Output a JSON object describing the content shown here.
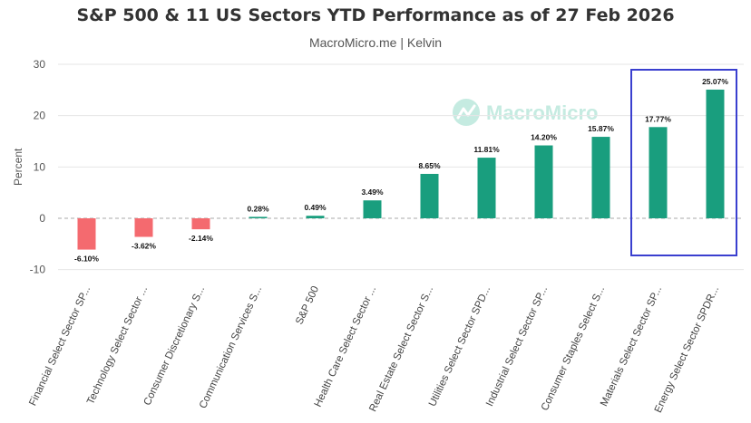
{
  "colors": {
    "positive": "#199e7e",
    "negative": "#f46a6f",
    "highlight_box": "#3a3fcf",
    "grid": "#e6e6e6",
    "zero_line": "#aaaaaa",
    "watermark": "#c5ebe1"
  },
  "watermark": {
    "text": "MacroMicro",
    "icon": "macromicro-logo-icon"
  },
  "chart_data": {
    "type": "bar",
    "title": "S&P 500 & 11 US Sectors YTD Performance as of 27 Feb 2026",
    "subtitle": "MacroMicro.me | Kelvin",
    "xlabel": "",
    "ylabel": "Percent",
    "ylim": [
      -10,
      30
    ],
    "yticks": [
      -10,
      0,
      10,
      20,
      30
    ],
    "grid": true,
    "categories": [
      "Financial Select Sector SP...",
      "Technology Select Sector ...",
      "Consumer Discretionary S...",
      "Communication Services S...",
      "S&P 500",
      "Health Care Select Sector ...",
      "Real Estate Select Sector S...",
      "Utilities Select Sector SPD...",
      "Industrial Select Sector SP...",
      "Consumer Staples Select S...",
      "Materials Select Sector SP...",
      "Energy Select Sector SPDR..."
    ],
    "values": [
      -6.1,
      -3.62,
      -2.14,
      0.28,
      0.49,
      3.49,
      8.65,
      11.81,
      14.2,
      15.87,
      17.77,
      25.07
    ],
    "data_labels": [
      "-6.10%",
      "-3.62%",
      "-2.14%",
      "0.28%",
      "0.49%",
      "3.49%",
      "8.65%",
      "11.81%",
      "14.20%",
      "15.87%",
      "17.77%",
      "25.07%"
    ],
    "highlighted_categories": [
      "Materials Select Sector SP...",
      "Energy Select Sector SPDR..."
    ]
  }
}
